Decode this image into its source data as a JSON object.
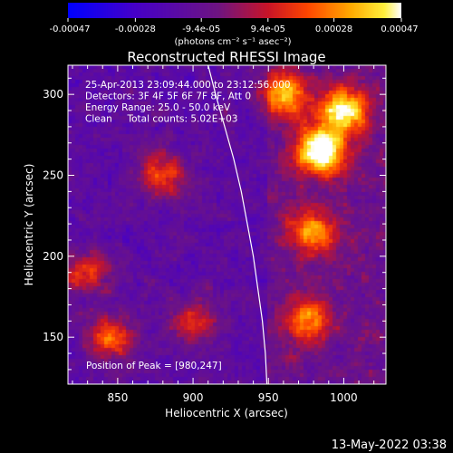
{
  "colorbar": {
    "ticks": [
      "-0.00047",
      "-0.00028",
      "-9.4e-05",
      "9.4e-05",
      "0.00028",
      "0.00047"
    ],
    "unit_label": "(photons cm⁻² s⁻¹ asec⁻²)",
    "range": [
      -0.00047,
      0.00047
    ]
  },
  "chart_data": {
    "type": "heatmap",
    "title": "Reconstructed RHESSI Image",
    "xlabel": "Heliocentric X (arcsec)",
    "ylabel": "Heliocentric Y (arcsec)",
    "xlim": [
      817,
      1028
    ],
    "ylim": [
      121,
      318
    ],
    "xticks": [
      850,
      900,
      950,
      1000
    ],
    "yticks": [
      150,
      200,
      250,
      300
    ],
    "annotations": [
      "25-Apr-2013 23:09:44.000 to 23:12:56.000",
      "Detectors: 3F 4F 5F 6F 7F 8F, Att 0",
      "Energy Range: 25.0 - 50.0 keV",
      "Clean     Total counts: 5.02E+03"
    ],
    "peak_label": "Position of Peak = [980,247]",
    "peak": [
      980,
      247
    ],
    "limb_curve": [
      [
        910,
        318
      ],
      [
        915,
        300
      ],
      [
        921,
        280
      ],
      [
        927,
        260
      ],
      [
        932,
        240
      ],
      [
        936,
        220
      ],
      [
        940,
        200
      ],
      [
        943,
        180
      ],
      [
        946,
        160
      ],
      [
        948,
        140
      ],
      [
        949,
        121
      ]
    ],
    "bright_regions": [
      {
        "x": 985,
        "y": 265,
        "level": 1.0
      },
      {
        "x": 1000,
        "y": 290,
        "level": 0.8
      },
      {
        "x": 960,
        "y": 300,
        "level": 0.6
      },
      {
        "x": 980,
        "y": 215,
        "level": 0.55
      },
      {
        "x": 975,
        "y": 160,
        "level": 0.5
      },
      {
        "x": 845,
        "y": 150,
        "level": 0.55
      },
      {
        "x": 880,
        "y": 250,
        "level": 0.5
      },
      {
        "x": 830,
        "y": 190,
        "level": 0.45
      },
      {
        "x": 900,
        "y": 160,
        "level": 0.4
      }
    ]
  },
  "footer": {
    "timestamp": "13-May-2022 03:38"
  }
}
